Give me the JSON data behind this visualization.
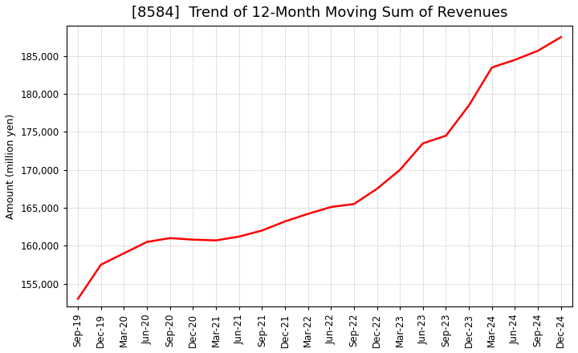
{
  "title": "[8584]  Trend of 12-Month Moving Sum of Revenues",
  "ylabel": "Amount (million yen)",
  "line_color": "#FF0000",
  "background_color": "#FFFFFF",
  "plot_background_color": "#FFFFFF",
  "grid_color": "#AAAAAA",
  "x_labels": [
    "Sep-19",
    "Dec-19",
    "Mar-20",
    "Jun-20",
    "Sep-20",
    "Dec-20",
    "Mar-21",
    "Jun-21",
    "Sep-21",
    "Dec-21",
    "Mar-22",
    "Jun-22",
    "Sep-22",
    "Dec-22",
    "Mar-23",
    "Jun-23",
    "Sep-23",
    "Dec-23",
    "Mar-24",
    "Jun-24",
    "Sep-24",
    "Dec-24"
  ],
  "values": [
    153000,
    157500,
    159000,
    160500,
    161000,
    160800,
    160700,
    161200,
    162000,
    163200,
    164200,
    165100,
    165500,
    167500,
    170000,
    173500,
    174500,
    178500,
    183500,
    184500,
    185700,
    187500
  ],
  "ylim_min": 152000,
  "ylim_max": 189000,
  "yticks": [
    155000,
    160000,
    165000,
    170000,
    175000,
    180000,
    185000
  ],
  "title_fontsize": 13,
  "label_fontsize": 9,
  "tick_fontsize": 8.5,
  "line_width": 1.8
}
